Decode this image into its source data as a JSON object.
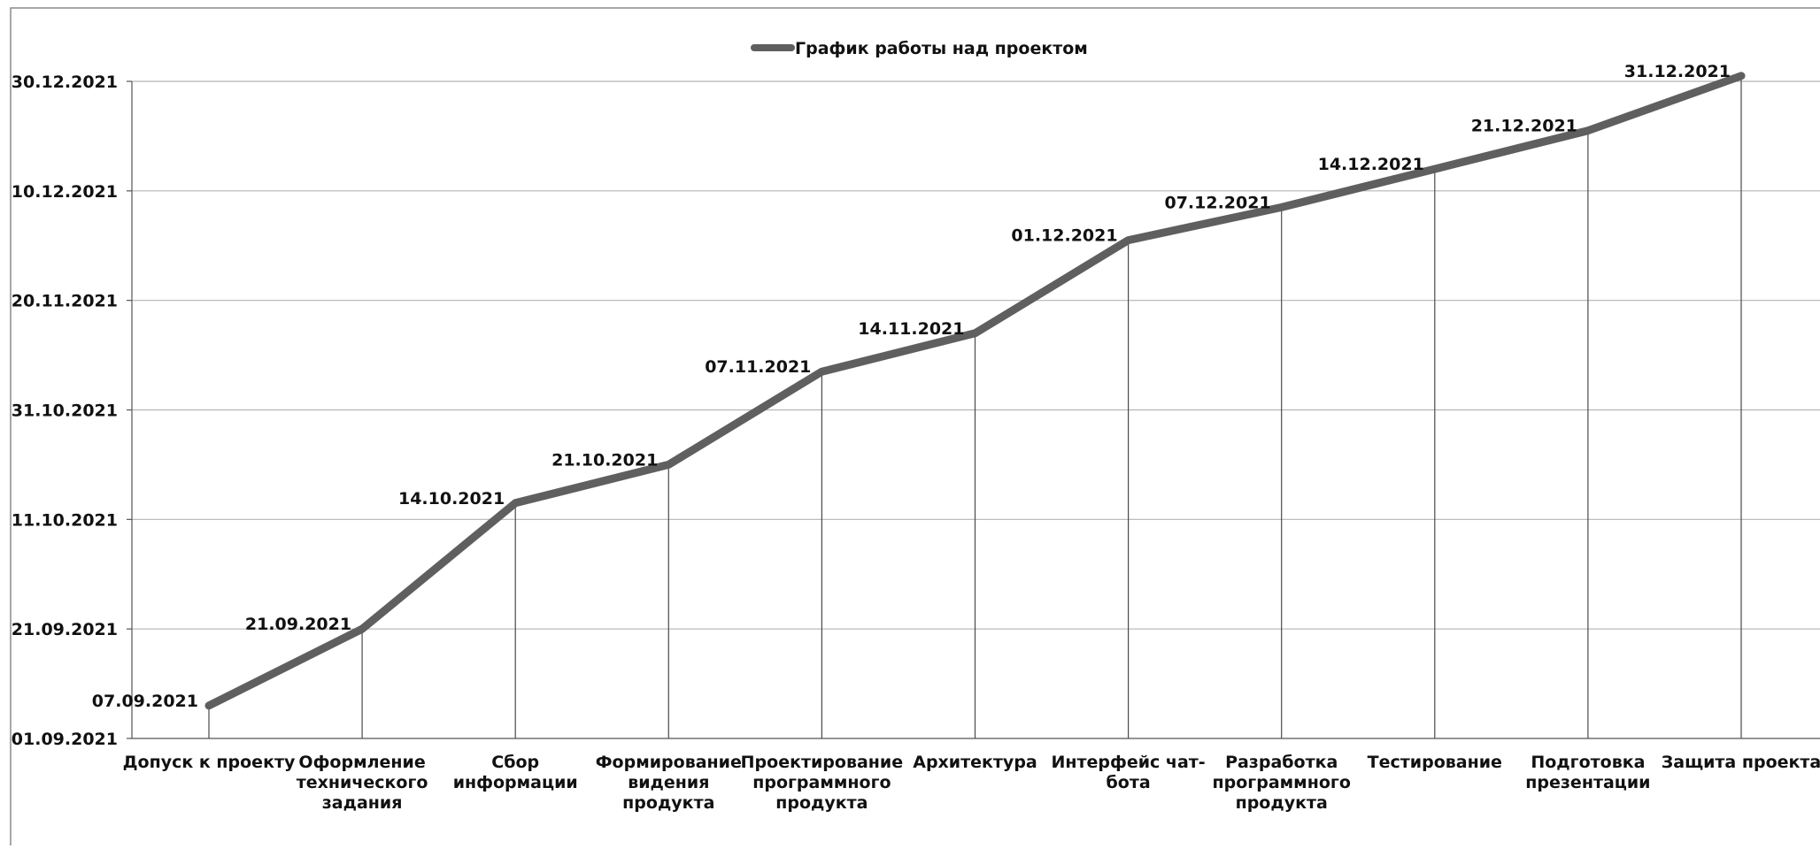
{
  "chart_data": {
    "type": "line",
    "legend": {
      "position": "top",
      "entries": [
        "График работы над проектом"
      ]
    },
    "series": [
      {
        "name": "График работы над проектом",
        "color": "#5f5f5f",
        "values": [
          "2021-09-07",
          "2021-09-21",
          "2021-10-14",
          "2021-10-21",
          "2021-11-07",
          "2021-11-14",
          "2021-12-01",
          "2021-12-07",
          "2021-12-14",
          "2021-12-21",
          "2021-12-31"
        ]
      }
    ],
    "categories": [
      [
        "Допуск к проекту"
      ],
      [
        "Оформление",
        "технического",
        "задания"
      ],
      [
        "Сбор",
        "информации"
      ],
      [
        "Формирование",
        "видения",
        "продукта"
      ],
      [
        "Проектирование",
        "программного",
        "продукта"
      ],
      [
        "Архитектура"
      ],
      [
        "Интерфейс чат-",
        "бота"
      ],
      [
        "Разработка",
        "программного",
        "продукта"
      ],
      [
        "Тестирование"
      ],
      [
        "Подготовка",
        "презентации"
      ],
      [
        "Защита проекта"
      ]
    ],
    "data_labels": [
      "07.09.2021",
      "21.09.2021",
      "14.10.2021",
      "21.10.2021",
      "07.11.2021",
      "14.11.2021",
      "01.12.2021",
      "07.12.2021",
      "14.12.2021",
      "21.12.2021",
      "31.12.2021"
    ],
    "y_axis": {
      "type": "date",
      "range": [
        "2021-09-01",
        "2021-12-30"
      ],
      "ticks": [
        "2021-09-01",
        "2021-09-21",
        "2021-10-11",
        "2021-10-31",
        "2021-11-20",
        "2021-12-10",
        "2021-12-30"
      ],
      "tick_labels": [
        "01.09.2021",
        "21.09.2021",
        "11.10.2021",
        "31.10.2021",
        "20.11.2021",
        "10.12.2021",
        "30.12.2021"
      ]
    },
    "grid": {
      "horizontal": true,
      "drop_lines": true
    }
  }
}
